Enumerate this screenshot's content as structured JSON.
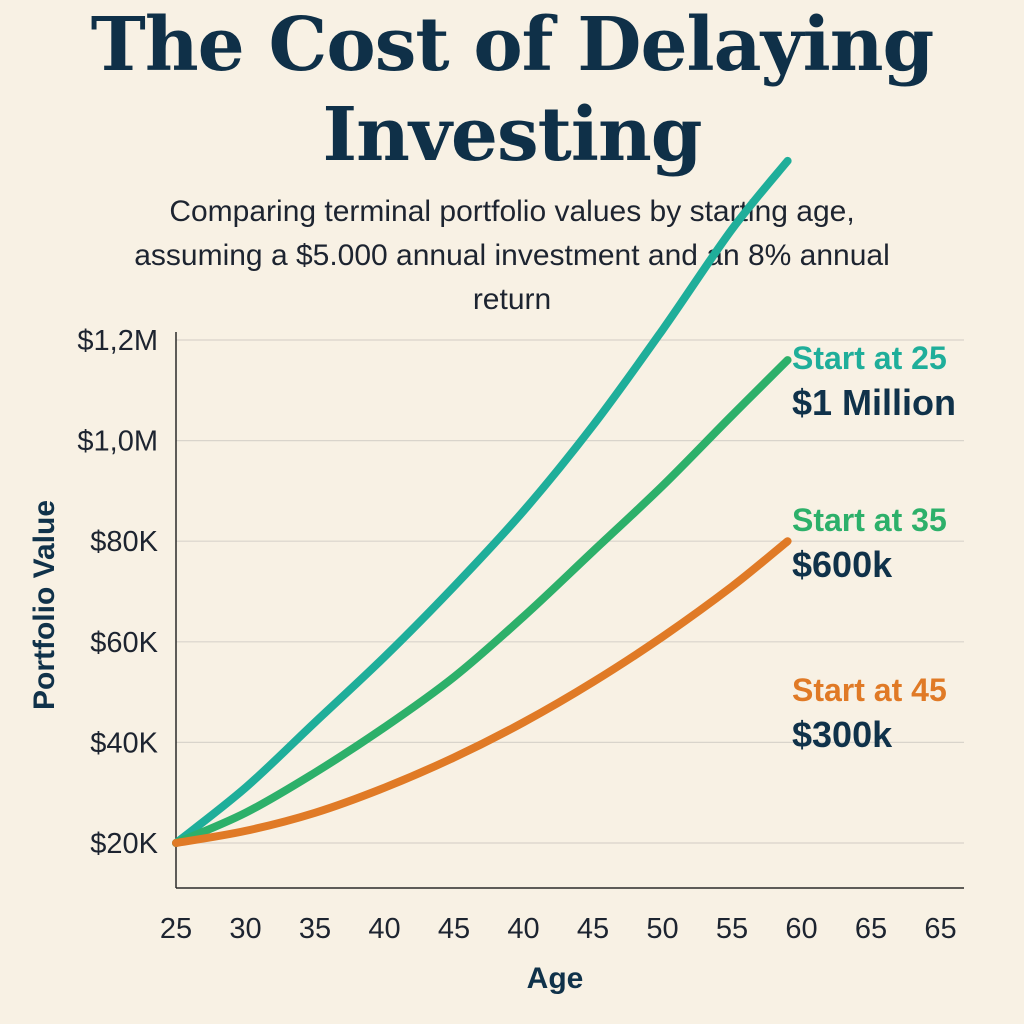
{
  "header": {
    "title_line1": "The Cost of Delaying",
    "title_line2": "Investing",
    "subtitle_line1": "Comparing terminal portfolio values by starting age,",
    "subtitle_line2": "assuming a $5.000 annual investment and an 8% annual",
    "subtitle_line3": "return"
  },
  "colors": {
    "background": "#f8f1e4",
    "title": "#0f3048",
    "start25": "#1fae9a",
    "start35": "#2db06a",
    "start45": "#e07a26",
    "grid": "#d9d4cb",
    "axis": "#2a2a2a"
  },
  "chart_data": {
    "type": "line",
    "title": "The Cost of Delaying Investing",
    "subtitle": "Comparing terminal portfolio values by starting age, assuming a $5.000 annual investment and an 8% annual return",
    "xlabel": "Age",
    "ylabel": "Portfolio Value",
    "x_tick_labels": [
      "25",
      "30",
      "35",
      "40",
      "45",
      "40",
      "45",
      "50",
      "55",
      "60",
      "65",
      "65"
    ],
    "y_tick_labels": [
      "$20K",
      "$40K",
      "$60K",
      "$80K",
      "$1,0M",
      "$1,2M"
    ],
    "grid": true,
    "legend": "inline-right",
    "series": [
      {
        "name": "Start at 25",
        "end_label": "$1 Million",
        "color": "#1fae9a",
        "x_index": [
          0,
          1,
          2,
          3,
          4,
          5,
          6,
          7,
          8,
          8.8
        ],
        "y_tick_index": [
          0,
          0.55,
          1.2,
          1.85,
          2.55,
          3.3,
          4.15,
          5.1,
          6.1,
          6.78
        ]
      },
      {
        "name": "Start at 35",
        "end_label": "$600k",
        "color": "#2db06a",
        "x_index": [
          0,
          1,
          2,
          3,
          4,
          5,
          6,
          7,
          8,
          8.8
        ],
        "y_tick_index": [
          0,
          0.3,
          0.7,
          1.15,
          1.65,
          2.25,
          2.9,
          3.55,
          4.25,
          4.8
        ]
      },
      {
        "name": "Start at 45",
        "end_label": "$300k",
        "color": "#e07a26",
        "x_index": [
          0,
          1,
          2,
          3,
          4,
          5,
          6,
          7,
          8,
          8.8
        ],
        "y_tick_index": [
          0,
          0.12,
          0.3,
          0.55,
          0.85,
          1.2,
          1.6,
          2.05,
          2.55,
          3.0
        ]
      }
    ]
  }
}
